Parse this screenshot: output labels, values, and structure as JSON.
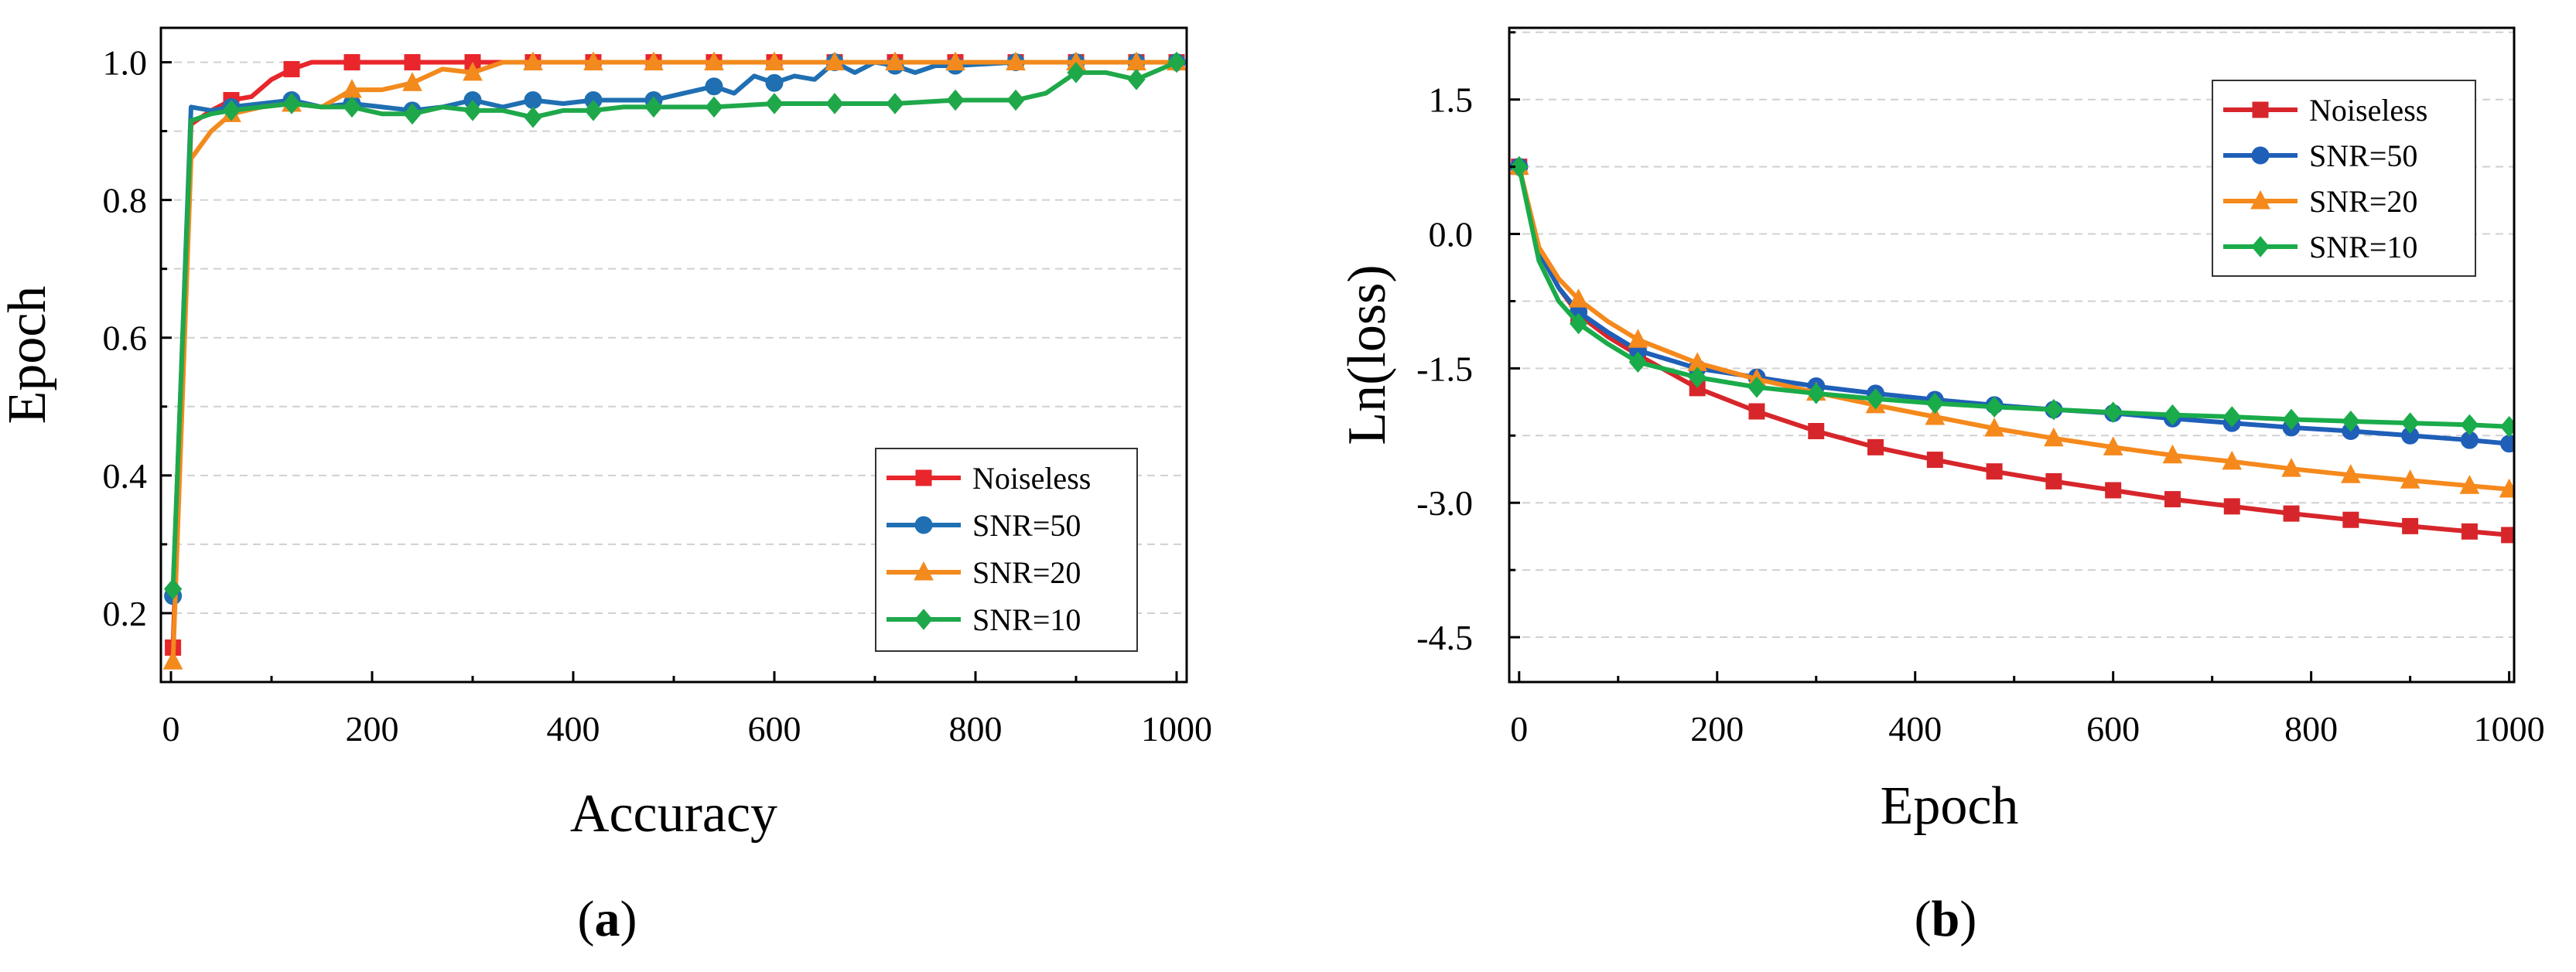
{
  "chart_data": [
    {
      "type": "line",
      "panel_label": {
        "pre": "(",
        "letter": "a",
        "post": ")"
      },
      "title": "",
      "xlabel": "Accuracy",
      "ylabel": "Epoch",
      "xlim": [
        -10,
        1010
      ],
      "ylim": [
        0.1,
        1.05
      ],
      "xticks": [
        0,
        200,
        400,
        600,
        800,
        1000
      ],
      "xtick_labels": [
        "0",
        "200",
        "400",
        "600",
        "800",
        "1000"
      ],
      "yticks": [
        0.2,
        0.4,
        0.6,
        0.8,
        1.0
      ],
      "ytick_labels": [
        "0.2",
        "0.4",
        "0.6",
        "0.8",
        "1.0"
      ],
      "grid": "horizontal dashed",
      "legend_position": "bottom-right",
      "series": [
        {
          "name": "Noiseless",
          "color": "#e8262b",
          "marker": "square",
          "x": [
            2,
            20,
            40,
            60,
            80,
            100,
            120,
            140,
            160,
            180,
            240,
            300,
            360,
            420,
            480,
            540,
            600,
            660,
            720,
            780,
            840,
            900,
            960,
            1000
          ],
          "y": [
            0.15,
            0.91,
            0.93,
            0.945,
            0.95,
            0.975,
            0.99,
            1.0,
            1.0,
            1.0,
            1.0,
            1.0,
            1.0,
            1.0,
            1.0,
            1.0,
            1.0,
            1.0,
            1.0,
            1.0,
            1.0,
            1.0,
            1.0,
            1.0
          ]
        },
        {
          "name": "SNR=50",
          "color": "#1f6fb2",
          "marker": "circle",
          "x": [
            2,
            20,
            40,
            60,
            90,
            120,
            150,
            180,
            210,
            240,
            270,
            300,
            330,
            360,
            390,
            420,
            450,
            480,
            510,
            540,
            560,
            580,
            600,
            620,
            640,
            660,
            680,
            700,
            720,
            740,
            760,
            780,
            840,
            900,
            960,
            1000
          ],
          "y": [
            0.225,
            0.935,
            0.93,
            0.935,
            0.94,
            0.945,
            0.935,
            0.94,
            0.935,
            0.93,
            0.935,
            0.945,
            0.935,
            0.945,
            0.94,
            0.945,
            0.945,
            0.945,
            0.955,
            0.965,
            0.955,
            0.98,
            0.97,
            0.98,
            0.975,
            1.0,
            0.985,
            1.0,
            0.995,
            0.985,
            0.995,
            0.995,
            1.0,
            1.0,
            1.0,
            1.0
          ]
        },
        {
          "name": "SNR=20",
          "color": "#f28a1d",
          "marker": "triangle",
          "x": [
            2,
            20,
            40,
            60,
            90,
            120,
            150,
            180,
            210,
            240,
            270,
            300,
            330,
            360,
            420,
            480,
            540,
            600,
            660,
            720,
            780,
            840,
            900,
            960,
            1000
          ],
          "y": [
            0.13,
            0.86,
            0.9,
            0.925,
            0.935,
            0.94,
            0.935,
            0.96,
            0.96,
            0.97,
            0.99,
            0.985,
            1.0,
            1.0,
            1.0,
            1.0,
            1.0,
            1.0,
            1.0,
            1.0,
            1.0,
            1.0,
            1.0,
            1.0,
            1.0
          ]
        },
        {
          "name": "SNR=10",
          "color": "#1fa84a",
          "marker": "diamond",
          "x": [
            2,
            20,
            40,
            60,
            90,
            120,
            150,
            180,
            210,
            240,
            270,
            300,
            330,
            360,
            390,
            420,
            450,
            480,
            540,
            600,
            660,
            720,
            780,
            840,
            870,
            900,
            930,
            960,
            1000
          ],
          "y": [
            0.235,
            0.915,
            0.925,
            0.93,
            0.935,
            0.94,
            0.935,
            0.935,
            0.925,
            0.925,
            0.935,
            0.93,
            0.93,
            0.92,
            0.93,
            0.93,
            0.935,
            0.935,
            0.935,
            0.94,
            0.94,
            0.94,
            0.945,
            0.945,
            0.955,
            0.985,
            0.985,
            0.975,
            1.0
          ]
        }
      ]
    },
    {
      "type": "line",
      "panel_label": {
        "pre": "(",
        "letter": "b",
        "post": ")"
      },
      "title": "",
      "xlabel": "Epoch",
      "ylabel": "Ln(loss)",
      "xlim": [
        -10,
        1005
      ],
      "ylim": [
        -5.0,
        2.3
      ],
      "xticks": [
        0,
        200,
        400,
        600,
        800,
        1000
      ],
      "xtick_labels": [
        "0",
        "200",
        "400",
        "600",
        "800",
        "1000"
      ],
      "yticks": [
        1.5,
        0.0,
        -1.5,
        -3.0,
        -4.5
      ],
      "ytick_labels": [
        "1.5",
        "0.0",
        "-1.5",
        "-3.0",
        "-4.5"
      ],
      "grid": "horizontal dashed",
      "legend_position": "top-right",
      "series": [
        {
          "name": "Noiseless",
          "color": "#d7262b",
          "marker": "square",
          "x": [
            0,
            20,
            40,
            60,
            90,
            120,
            180,
            240,
            300,
            360,
            420,
            480,
            540,
            600,
            660,
            720,
            780,
            840,
            900,
            960,
            1000
          ],
          "y": [
            0.75,
            -0.2,
            -0.6,
            -0.9,
            -1.15,
            -1.35,
            -1.72,
            -1.98,
            -2.2,
            -2.38,
            -2.52,
            -2.65,
            -2.76,
            -2.86,
            -2.96,
            -3.04,
            -3.12,
            -3.19,
            -3.26,
            -3.32,
            -3.36
          ]
        },
        {
          "name": "SNR=50",
          "color": "#1f5fb8",
          "marker": "circle",
          "x": [
            0,
            20,
            40,
            60,
            90,
            120,
            180,
            240,
            300,
            360,
            420,
            480,
            540,
            600,
            660,
            720,
            780,
            840,
            900,
            960,
            1000
          ],
          "y": [
            0.75,
            -0.2,
            -0.6,
            -0.87,
            -1.1,
            -1.3,
            -1.5,
            -1.6,
            -1.7,
            -1.78,
            -1.85,
            -1.91,
            -1.96,
            -2.0,
            -2.06,
            -2.11,
            -2.16,
            -2.2,
            -2.25,
            -2.3,
            -2.34
          ]
        },
        {
          "name": "SNR=20",
          "color": "#f5891c",
          "marker": "triangle",
          "x": [
            0,
            20,
            40,
            60,
            90,
            120,
            180,
            240,
            300,
            360,
            420,
            480,
            540,
            600,
            660,
            720,
            780,
            840,
            900,
            960,
            1000
          ],
          "y": [
            0.75,
            -0.15,
            -0.5,
            -0.73,
            -0.98,
            -1.18,
            -1.44,
            -1.62,
            -1.77,
            -1.91,
            -2.04,
            -2.17,
            -2.28,
            -2.38,
            -2.47,
            -2.54,
            -2.62,
            -2.69,
            -2.75,
            -2.81,
            -2.85
          ]
        },
        {
          "name": "SNR=10",
          "color": "#1aab4a",
          "marker": "diamond",
          "x": [
            0,
            20,
            40,
            60,
            90,
            120,
            180,
            240,
            300,
            360,
            420,
            480,
            540,
            600,
            660,
            720,
            780,
            840,
            900,
            960,
            1000
          ],
          "y": [
            0.75,
            -0.3,
            -0.75,
            -1.0,
            -1.23,
            -1.43,
            -1.6,
            -1.71,
            -1.78,
            -1.84,
            -1.89,
            -1.93,
            -1.96,
            -1.99,
            -2.02,
            -2.04,
            -2.07,
            -2.09,
            -2.11,
            -2.13,
            -2.15
          ]
        }
      ]
    }
  ]
}
